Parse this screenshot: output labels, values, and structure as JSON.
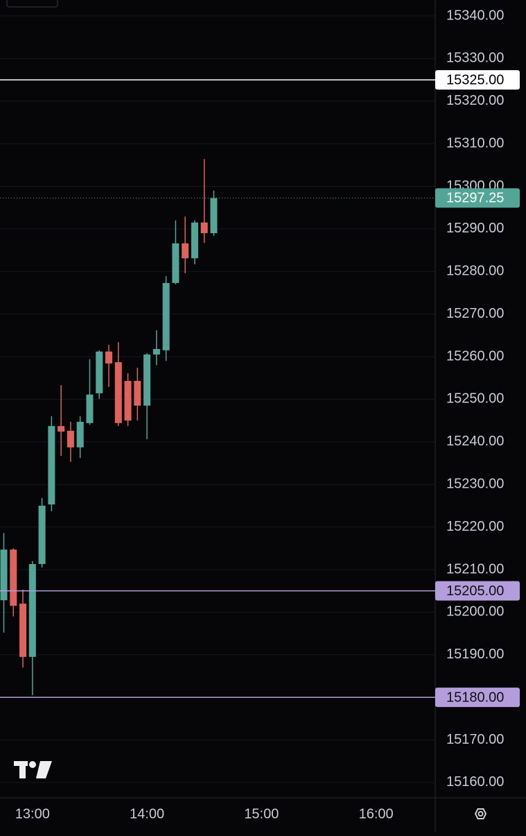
{
  "chart_data": {
    "type": "candlestick",
    "x": [
      "12:45",
      "12:50",
      "12:55",
      "13:00",
      "13:05",
      "13:10",
      "13:15",
      "13:20",
      "13:25",
      "13:30",
      "13:35",
      "13:40",
      "13:45",
      "13:50",
      "13:55",
      "14:00",
      "14:05",
      "14:10",
      "14:15",
      "14:20",
      "14:25",
      "14:30",
      "14:35"
    ],
    "series": [
      {
        "up_color": "#52a597",
        "down_color": "#e0625c",
        "open": [
          15202.8,
          15214.7,
          15202.0,
          15189.5,
          15211.3,
          15225.3,
          15243.7,
          15242.6,
          15238.7,
          15244.4,
          15251.4,
          15261.2,
          15258.7,
          15254.3,
          15254.3,
          15248.5,
          15260.5,
          15261.5,
          15277.3,
          15286.6,
          15283.1,
          15291.5,
          15289.0
        ],
        "high": [
          15218.6,
          15215.0,
          15205.3,
          15212.0,
          15226.8,
          15246.0,
          15253.3,
          15244.7,
          15246.0,
          15259.4,
          15261.5,
          15262.8,
          15263.4,
          15256.1,
          15257.4,
          15260.8,
          15266.2,
          15278.9,
          15292.0,
          15292.9,
          15292.0,
          15306.4,
          15299.0
        ],
        "low": [
          15195.2,
          15199.0,
          15187.0,
          15180.5,
          15210.5,
          15223.7,
          15236.7,
          15235.3,
          15236.2,
          15244.0,
          15250.1,
          15252.9,
          15243.7,
          15243.7,
          15245.0,
          15240.6,
          15258.0,
          15259.0,
          15277.0,
          15279.6,
          15281.7,
          15286.7,
          15288.4
        ],
        "close": [
          15214.7,
          15201.5,
          15189.5,
          15211.3,
          15225.0,
          15243.7,
          15242.4,
          15238.7,
          15244.7,
          15251.1,
          15261.2,
          15258.4,
          15244.4,
          15245.0,
          15248.5,
          15260.5,
          15261.8,
          15277.3,
          15286.6,
          15283.1,
          15291.5,
          15289.0,
          15297.25
        ]
      }
    ],
    "ylim": [
      15156.4,
      15343.75
    ],
    "yticks": [
      {
        "value": 15160,
        "label": "15160.00"
      },
      {
        "value": 15170,
        "label": "15170.00"
      },
      {
        "value": 15180,
        "label": "15180.00"
      },
      {
        "value": 15190,
        "label": "15190.00"
      },
      {
        "value": 15200,
        "label": "15200.00"
      },
      {
        "value": 15210,
        "label": "15210.00"
      },
      {
        "value": 15220,
        "label": "15220.00"
      },
      {
        "value": 15230,
        "label": "15230.00"
      },
      {
        "value": 15240,
        "label": "15240.00"
      },
      {
        "value": 15250,
        "label": "15250.00"
      },
      {
        "value": 15260,
        "label": "15260.00"
      },
      {
        "value": 15270,
        "label": "15270.00"
      },
      {
        "value": 15280,
        "label": "15280.00"
      },
      {
        "value": 15290,
        "label": "15290.00"
      },
      {
        "value": 15300,
        "label": "15300.00"
      },
      {
        "value": 15310,
        "label": "15310.00"
      },
      {
        "value": 15320,
        "label": "15320.00"
      },
      {
        "value": 15330,
        "label": "15330.00"
      },
      {
        "value": 15340,
        "label": "15340.00"
      }
    ],
    "xlim": [
      "12:43",
      "16:31"
    ],
    "xticks": [
      "13:00",
      "14:00",
      "15:00",
      "16:00"
    ],
    "grid": true,
    "price_lines": [
      {
        "value": 15325,
        "label": "15325.00",
        "color": "#ffffff",
        "text_color": "#000000"
      },
      {
        "value": 15205,
        "label": "15205.00",
        "color": "#b39ddb",
        "text_color": "#111111"
      },
      {
        "value": 15180,
        "label": "15180.00",
        "color": "#b39ddb",
        "text_color": "#111111"
      }
    ],
    "last_price": {
      "value": 15297.25,
      "label": "15297.25",
      "color": "#52a597",
      "text_color": "#ffffff"
    }
  }
}
